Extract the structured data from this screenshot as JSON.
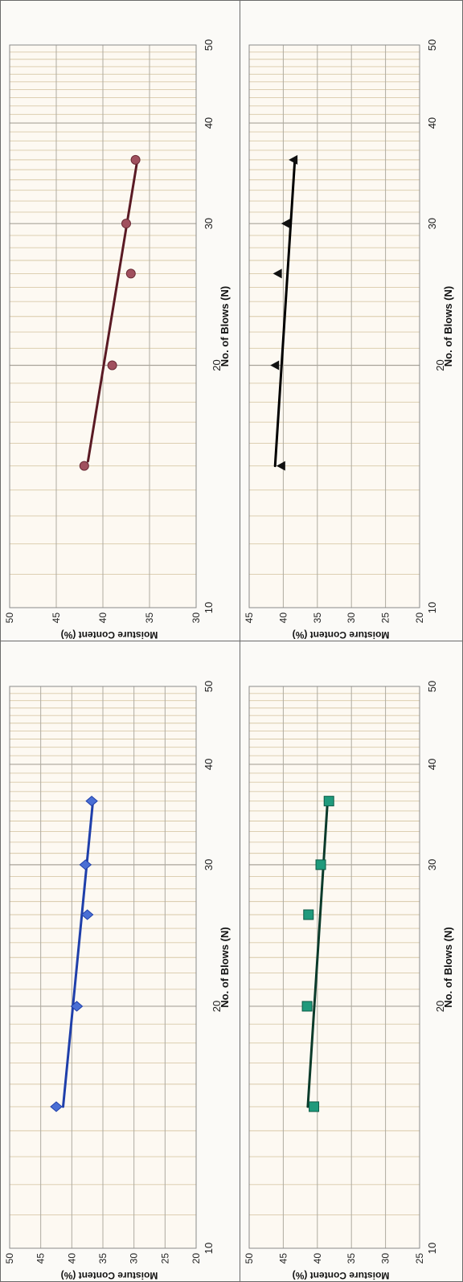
{
  "chart_data": [
    {
      "type": "line",
      "xlabel": "No. of Blows (N)",
      "ylabel": "Moisture Content (%)",
      "xlim": [
        10,
        50
      ],
      "ylim": [
        20,
        50
      ],
      "x_scale": "log",
      "x_ticks": [
        "10",
        "20",
        "30",
        "40",
        "50"
      ],
      "y_ticks": [
        "20",
        "25",
        "30",
        "35",
        "40",
        "45",
        "50"
      ],
      "grid": true,
      "series": [
        {
          "marker": "diamond",
          "color": "#4a6fd4",
          "line_color": "#1f3faa",
          "x": [
            15,
            20,
            26,
            30,
            36
          ],
          "y": [
            42.5,
            39.2,
            37.5,
            37.8,
            36.8
          ],
          "fit": [
            [
              15,
              41.4
            ],
            [
              36,
              36.6
            ]
          ]
        }
      ]
    },
    {
      "type": "line",
      "xlabel": "No. of Blows (N)",
      "ylabel": "Moisture Content (%)",
      "xlim": [
        10,
        50
      ],
      "ylim": [
        30,
        50
      ],
      "x_scale": "log",
      "x_ticks": [
        "10",
        "20",
        "30",
        "40",
        "50"
      ],
      "y_ticks": [
        "30",
        "35",
        "40",
        "45",
        "50"
      ],
      "grid": true,
      "series": [
        {
          "marker": "circle",
          "color": "#a0505e",
          "line_color": "#5a1a24",
          "x": [
            15,
            20,
            26,
            30,
            36
          ],
          "y": [
            42,
            39,
            37,
            37.5,
            36.5
          ],
          "fit": [
            [
              15.2,
              41.6
            ],
            [
              36,
              36.3
            ]
          ]
        }
      ]
    },
    {
      "type": "line",
      "xlabel": "No. of Blows (N)",
      "ylabel": "Moisture Content (%)",
      "xlim": [
        10,
        50
      ],
      "ylim": [
        25,
        50
      ],
      "x_scale": "log",
      "x_ticks": [
        "10",
        "20",
        "30",
        "40",
        "50"
      ],
      "y_ticks": [
        "25",
        "30",
        "35",
        "40",
        "45",
        "50"
      ],
      "grid": true,
      "series": [
        {
          "marker": "square",
          "color": "#1f9a7c",
          "line_color": "#0b3b2b",
          "x": [
            15,
            20,
            26,
            30,
            36
          ],
          "y": [
            40.5,
            41.5,
            41.3,
            39.5,
            38.3
          ],
          "fit": [
            [
              15,
              41.4
            ],
            [
              36,
              38.5
            ]
          ]
        }
      ]
    },
    {
      "type": "line",
      "xlabel": "No. of Blows (N)",
      "ylabel": "Moisture Content (%)",
      "xlim": [
        10,
        50
      ],
      "ylim": [
        20,
        45
      ],
      "x_scale": "log",
      "x_ticks": [
        "10",
        "20",
        "30",
        "40",
        "50"
      ],
      "y_ticks": [
        "20",
        "25",
        "30",
        "35",
        "40",
        "45"
      ],
      "grid": true,
      "series": [
        {
          "marker": "triangle",
          "color": "#111111",
          "line_color": "#000000",
          "x": [
            15,
            20,
            26,
            30,
            36
          ],
          "y": [
            40.3,
            41.2,
            40.8,
            39.6,
            38.5
          ],
          "fit": [
            [
              15,
              41.2
            ],
            [
              36,
              38.3
            ]
          ]
        }
      ]
    }
  ]
}
